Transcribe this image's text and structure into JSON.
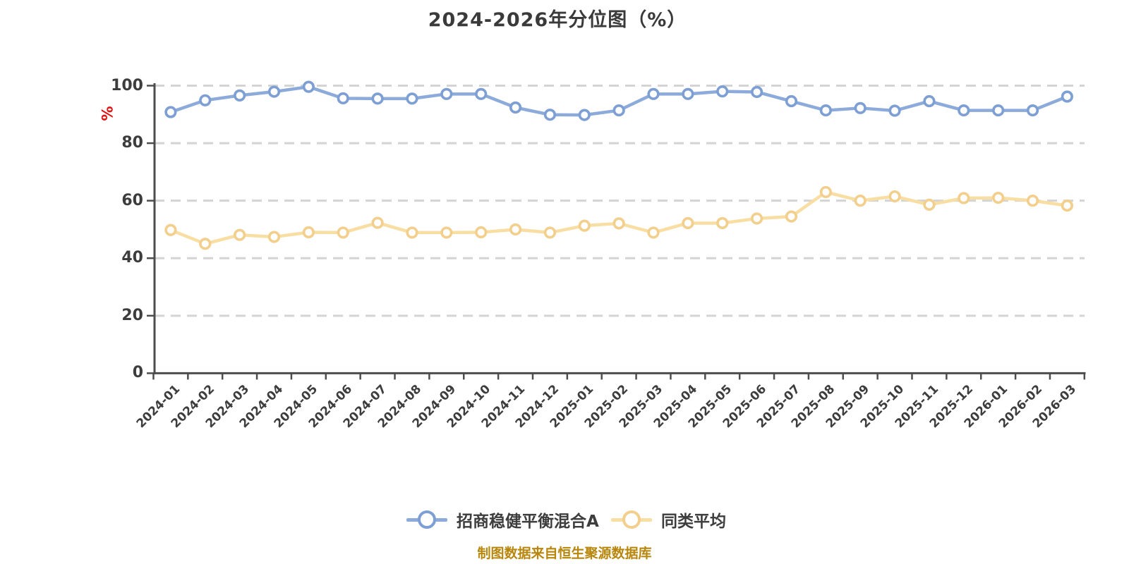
{
  "title": "2024-2026年分位图（%）",
  "y_axis_unit_label": "%",
  "caption": "制图数据来自恒生聚源数据库",
  "colors": {
    "grid": "#d4d4d4",
    "axis": "#4d4d4d",
    "tick_text": "#3d3d3d",
    "title_text": "#3a3a3a",
    "caption_text": "#b8860b",
    "y_unit_text": "#e01212",
    "marker_fill": "#ffffff"
  },
  "chart_data": {
    "type": "line",
    "title": "2024-2026年分位图（%）",
    "xlabel": "",
    "ylabel": "%",
    "ylim": [
      0,
      100
    ],
    "yticks": [
      0,
      20,
      40,
      60,
      80,
      100
    ],
    "grid": "horizontal-dashed",
    "legend_position": "bottom-center",
    "categories": [
      "2024-01",
      "2024-02",
      "2024-03",
      "2024-04",
      "2024-05",
      "2024-06",
      "2024-07",
      "2024-08",
      "2024-09",
      "2024-10",
      "2024-11",
      "2024-12",
      "2025-01",
      "2025-02",
      "2025-03",
      "2025-04",
      "2025-05",
      "2025-06",
      "2025-07",
      "2025-08",
      "2025-09",
      "2025-10",
      "2025-11",
      "2025-12",
      "2026-01",
      "2026-02",
      "2026-03"
    ],
    "series": [
      {
        "name": "招商稳健平衡混合A",
        "color": "#8cabdb",
        "marker_ring": "#7d9fd3",
        "values": [
          90.8,
          94.9,
          96.6,
          97.9,
          99.6,
          95.6,
          95.5,
          95.5,
          97.1,
          97.1,
          92.4,
          89.9,
          89.8,
          91.4,
          97.1,
          97.1,
          98.0,
          97.8,
          94.6,
          91.4,
          92.2,
          91.3,
          94.6,
          91.4,
          91.4,
          91.4,
          96.2
        ]
      },
      {
        "name": "同类平均",
        "color": "#f8dea2",
        "marker_ring": "#f2cf8c",
        "values": [
          49.8,
          45.0,
          48.1,
          47.4,
          49.0,
          48.9,
          52.3,
          48.9,
          48.9,
          49.0,
          50.0,
          48.9,
          51.3,
          52.1,
          48.9,
          52.2,
          52.2,
          53.8,
          54.5,
          63.0,
          60.0,
          61.5,
          58.6,
          60.9,
          61.0,
          60.0,
          58.3
        ]
      }
    ]
  }
}
